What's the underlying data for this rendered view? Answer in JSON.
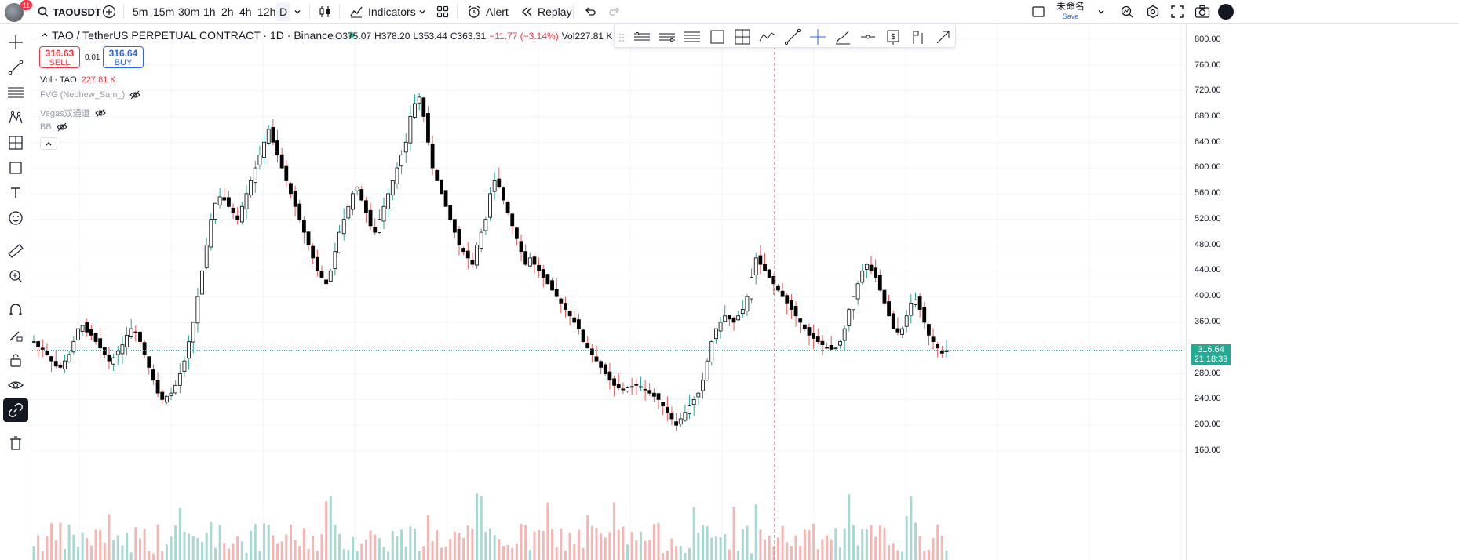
{
  "topbar": {
    "notif_count": "11",
    "symbol": "TAOUSDT",
    "intervals": [
      "5m",
      "15m",
      "30m",
      "1h",
      "2h",
      "4h",
      "12h",
      "D"
    ],
    "active_interval": "D",
    "indicators_label": "Indicators",
    "alert_label": "Alert",
    "replay_label": "Replay",
    "layout_name": "未命名",
    "layout_save": "Save"
  },
  "legend": {
    "title": "TAO / TetherUS PERPETUAL CONTRACT · 1D · Binance",
    "open": "O375.07",
    "high": "H378.20",
    "low": "L353.44",
    "close": "C363.31",
    "change": "−11.77 (−3.14%)",
    "vol": "Vol227.81 K"
  },
  "trade": {
    "sell_price": "316.63",
    "sell_label": "SELL",
    "spread": "0.01",
    "buy_price": "316.64",
    "buy_label": "BUY"
  },
  "indicators": {
    "vol_label": "Vol · TAO",
    "vol_value": "227.81 K",
    "fvg": "FVG (Nephew_Sam_)",
    "vegas": "Vegas双通道",
    "bb": "BB"
  },
  "price_axis": {
    "labels": [
      "800.00",
      "760.00",
      "720.00",
      "680.00",
      "640.00",
      "600.00",
      "560.00",
      "520.00",
      "480.00",
      "440.00",
      "400.00",
      "360.00",
      "280.00",
      "240.00",
      "200.00",
      "160.00"
    ],
    "last_price": "316.64",
    "countdown": "21:18:39"
  },
  "colors": {
    "up": "#26a69a",
    "down": "#ef5350",
    "up_vol": "#a8d8d2",
    "down_vol": "#f5b5b3",
    "candle_up_fill": "#ffffff",
    "candle_border": "#000000",
    "last_price_bg": "#22ab94",
    "accent": "#2962ff"
  },
  "chart_data": {
    "type": "candlestick",
    "y_range": [
      150,
      810
    ],
    "close_path": [
      330,
      322,
      318,
      310,
      300,
      292,
      290,
      300,
      310,
      330,
      350,
      355,
      345,
      340,
      330,
      320,
      310,
      300,
      305,
      315,
      325,
      340,
      350,
      345,
      330,
      310,
      290,
      270,
      250,
      240,
      245,
      250,
      262,
      280,
      300,
      330,
      360,
      400,
      440,
      480,
      520,
      545,
      555,
      550,
      540,
      530,
      520,
      540,
      560,
      580,
      600,
      620,
      640,
      660,
      640,
      620,
      600,
      580,
      560,
      540,
      520,
      500,
      480,
      460,
      440,
      430,
      420,
      440,
      470,
      500,
      520,
      540,
      560,
      570,
      550,
      530,
      510,
      500,
      520,
      540,
      560,
      580,
      600,
      620,
      640,
      680,
      700,
      710,
      680,
      640,
      600,
      580,
      560,
      540,
      520,
      500,
      480,
      470,
      460,
      450,
      480,
      500,
      520,
      560,
      580,
      570,
      550,
      530,
      510,
      490,
      470,
      450,
      460,
      450,
      440,
      430,
      420,
      410,
      400,
      390,
      380,
      370,
      360,
      350,
      330,
      320,
      310,
      300,
      290,
      280,
      270,
      262,
      258,
      255,
      258,
      260,
      262,
      260,
      255,
      250,
      245,
      240,
      230,
      220,
      210,
      200,
      210,
      220,
      230,
      240,
      250,
      270,
      300,
      330,
      350,
      360,
      370,
      365,
      360,
      370,
      380,
      400,
      430,
      460,
      450,
      440,
      430,
      420,
      410,
      400,
      390,
      380,
      370,
      360,
      350,
      340,
      335,
      330,
      325,
      320,
      318,
      320,
      330,
      350,
      380,
      400,
      420,
      440,
      450,
      440,
      430,
      410,
      390,
      370,
      350,
      345,
      350,
      370,
      390,
      395,
      380,
      360,
      340,
      330,
      320,
      312,
      316
    ]
  }
}
